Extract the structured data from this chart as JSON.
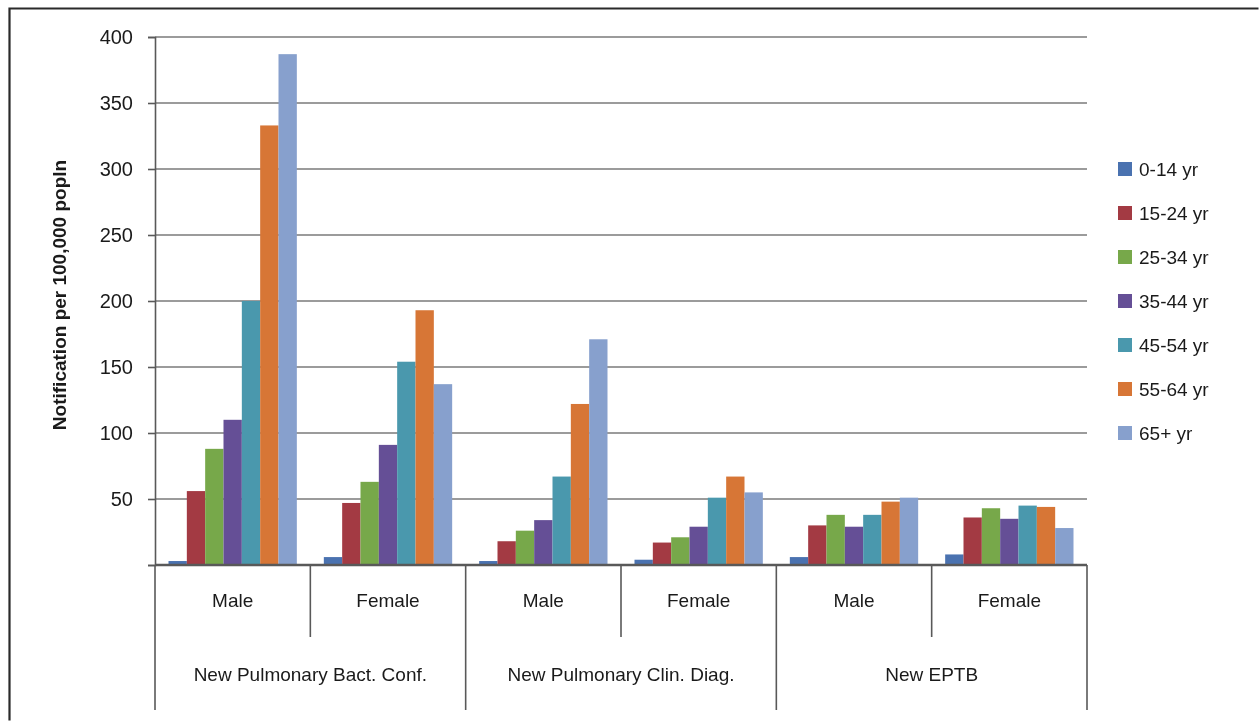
{
  "chart_data": {
    "type": "bar",
    "ylabel": "Notification per 100,000 popln",
    "categories": [
      "Male",
      "Female",
      "Male",
      "Female",
      "Male",
      "Female"
    ],
    "annotations": [
      "New Pulmonary Bact. Conf.",
      "New Pulmonary Clin. Diag.",
      "New EPTB"
    ],
    "series": [
      {
        "name": "0-14 yr",
        "color": "#4a72b0",
        "values": [
          3,
          6,
          3,
          4,
          6,
          8
        ]
      },
      {
        "name": "15-24 yr",
        "color": "#a33a43",
        "values": [
          56,
          47,
          18,
          17,
          30,
          36
        ]
      },
      {
        "name": "25-34 yr",
        "color": "#77a84a",
        "values": [
          88,
          63,
          26,
          21,
          38,
          43
        ]
      },
      {
        "name": "35-44 yr",
        "color": "#654f96",
        "values": [
          110,
          91,
          34,
          29,
          29,
          35
        ]
      },
      {
        "name": "45-54 yr",
        "color": "#4a98ad",
        "values": [
          200,
          154,
          67,
          51,
          38,
          45
        ]
      },
      {
        "name": "55-64 yr",
        "color": "#d77636",
        "values": [
          333,
          193,
          122,
          67,
          48,
          44
        ]
      },
      {
        "name": "65+ yr",
        "color": "#87a0cd",
        "values": [
          387,
          137,
          171,
          55,
          51,
          28
        ]
      }
    ],
    "ylim": [
      0,
      400
    ],
    "yticks": [
      {
        "value": 0,
        "label": null
      },
      50,
      100,
      150,
      200,
      250,
      300,
      350,
      400
    ],
    "grid": "y",
    "legend": "right"
  }
}
